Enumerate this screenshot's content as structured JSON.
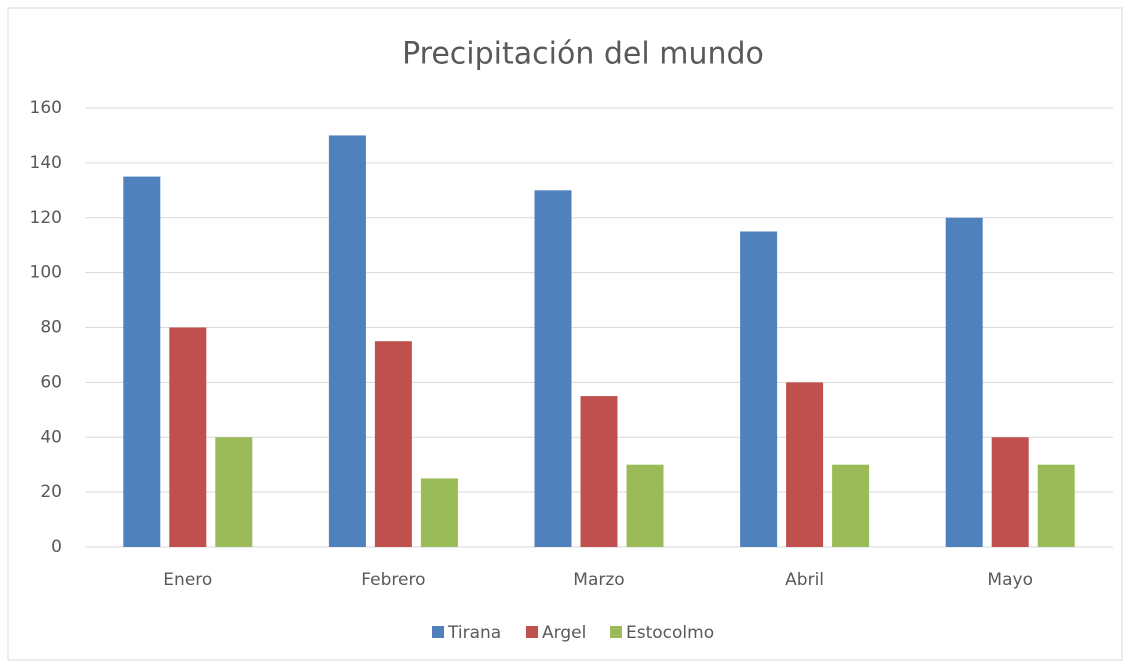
{
  "chart_data": {
    "type": "bar",
    "title": "Precipitación del mundo",
    "categories": [
      "Enero",
      "Febrero",
      "Marzo",
      "Abril",
      "Mayo"
    ],
    "series": [
      {
        "name": "Tirana",
        "color": "#4f81bd",
        "values": [
          135,
          150,
          130,
          115,
          120
        ]
      },
      {
        "name": "Argel",
        "color": "#c0504d",
        "values": [
          80,
          75,
          55,
          60,
          40
        ]
      },
      {
        "name": "Estocolmo",
        "color": "#9bbb59",
        "values": [
          40,
          25,
          30,
          30,
          30
        ]
      }
    ],
    "ylim": [
      0,
      160
    ],
    "yticks": [
      0,
      20,
      40,
      60,
      80,
      100,
      120,
      140,
      160
    ],
    "grid": true,
    "legend": "bottom"
  }
}
